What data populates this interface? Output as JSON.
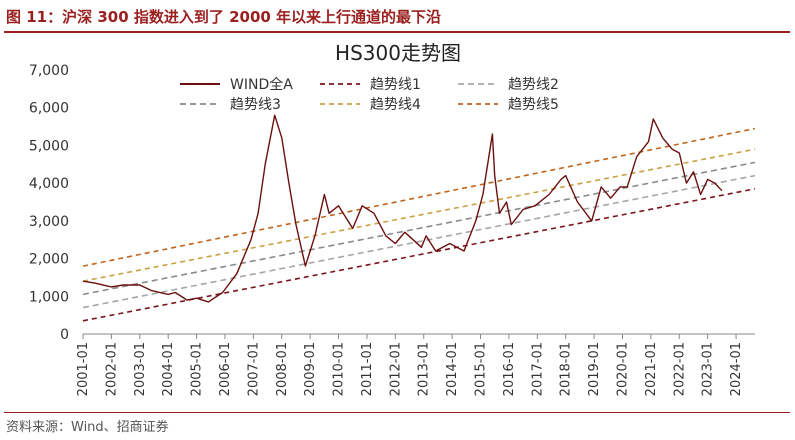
{
  "figure": {
    "title": "图 11：沪深 300 指数进入到了 2000 年以来上行通道的最下沿",
    "source": "资料来源：Wind、招商证券"
  },
  "colors": {
    "header_accent": "#9b1f1f",
    "wind": "#6b0f0f",
    "trend1": "#7a1420",
    "trend2": "#a6a6a6",
    "trend3": "#8a8a8a",
    "trend4": "#c9a044",
    "trend5": "#c0651e"
  },
  "chart_data": {
    "type": "line",
    "title": "HS300走势图",
    "xlabel": "",
    "ylabel": "",
    "xlim": [
      "2001-01",
      "2024-09"
    ],
    "ylim": [
      0,
      7000
    ],
    "yticks": [
      "0",
      "1,000",
      "2,000",
      "3,000",
      "4,000",
      "5,000",
      "6,000",
      "7,000"
    ],
    "xticks": [
      "2001-01",
      "2002-01",
      "2003-01",
      "2004-01",
      "2005-01",
      "2006-01",
      "2007-01",
      "2008-01",
      "2009-01",
      "2010-01",
      "2011-01",
      "2012-01",
      "2013-01",
      "2014-01",
      "2015-01",
      "2016-01",
      "2017-01",
      "2018-01",
      "2019-01",
      "2020-01",
      "2021-01",
      "2022-01",
      "2023-01",
      "2024-01"
    ],
    "grid": false,
    "legend_position": "top",
    "series": [
      {
        "name": "WIND全A",
        "style": "solid",
        "x": [
          "2001-01",
          "2001-06",
          "2002-01",
          "2002-06",
          "2003-01",
          "2003-06",
          "2004-01",
          "2004-04",
          "2004-09",
          "2005-01",
          "2005-06",
          "2005-12",
          "2006-06",
          "2006-12",
          "2007-03",
          "2007-06",
          "2007-10",
          "2008-01",
          "2008-04",
          "2008-07",
          "2008-11",
          "2009-03",
          "2009-07",
          "2009-09",
          "2010-01",
          "2010-07",
          "2010-11",
          "2011-04",
          "2011-09",
          "2012-01",
          "2012-05",
          "2012-12",
          "2013-02",
          "2013-06",
          "2013-12",
          "2014-06",
          "2014-11",
          "2015-02",
          "2015-06",
          "2015-07",
          "2015-09",
          "2015-12",
          "2016-02",
          "2016-07",
          "2016-12",
          "2017-06",
          "2017-11",
          "2018-01",
          "2018-06",
          "2018-12",
          "2019-04",
          "2019-08",
          "2019-12",
          "2020-03",
          "2020-07",
          "2020-12",
          "2021-02",
          "2021-06",
          "2021-10",
          "2022-01",
          "2022-04",
          "2022-07",
          "2022-10",
          "2023-01",
          "2023-04",
          "2023-07"
        ],
        "values": [
          1400,
          1350,
          1250,
          1300,
          1300,
          1150,
          1050,
          1100,
          900,
          950,
          850,
          1100,
          1600,
          2500,
          3200,
          4500,
          5800,
          5200,
          4000,
          2900,
          1800,
          2600,
          3700,
          3200,
          3400,
          2800,
          3400,
          3200,
          2600,
          2400,
          2700,
          2300,
          2600,
          2200,
          2400,
          2200,
          3000,
          3700,
          5300,
          4200,
          3200,
          3500,
          2900,
          3300,
          3400,
          3700,
          4100,
          4200,
          3500,
          3000,
          3900,
          3600,
          3900,
          3900,
          4700,
          5100,
          5700,
          5200,
          4900,
          4800,
          4000,
          4300,
          3700,
          4100,
          4000,
          3800
        ]
      },
      {
        "name": "趋势线1",
        "style": "dashed",
        "x": [
          "2001-01",
          "2024-09"
        ],
        "values": [
          350,
          3850
        ]
      },
      {
        "name": "趋势线2",
        "style": "dashed",
        "x": [
          "2001-01",
          "2024-09"
        ],
        "values": [
          700,
          4200
        ]
      },
      {
        "name": "趋势线3",
        "style": "dashed",
        "x": [
          "2001-01",
          "2024-09"
        ],
        "values": [
          1050,
          4550
        ]
      },
      {
        "name": "趋势线4",
        "style": "dashed",
        "x": [
          "2001-01",
          "2024-09"
        ],
        "values": [
          1400,
          4900
        ]
      },
      {
        "name": "趋势线5",
        "style": "dashed",
        "x": [
          "2001-01",
          "2024-09"
        ],
        "values": [
          1800,
          5450
        ]
      }
    ]
  }
}
